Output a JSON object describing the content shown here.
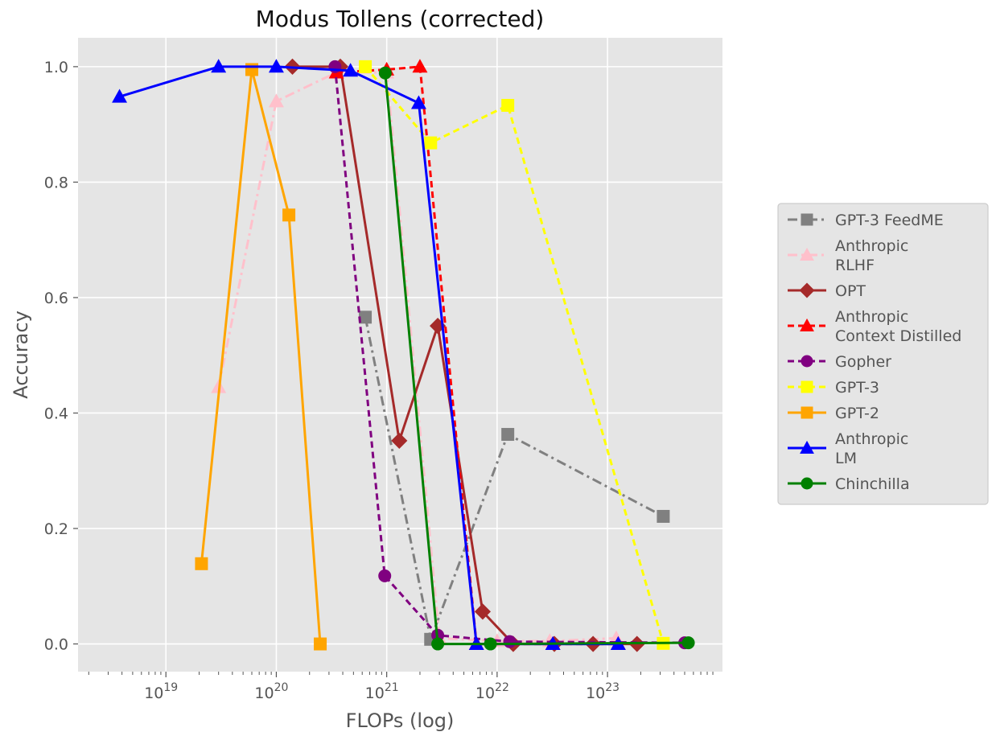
{
  "chart_data": {
    "type": "line",
    "title": "Modus Tollens (corrected)",
    "xlabel": "FLOPs (log)",
    "ylabel": "Accuracy",
    "xscale": "log",
    "xlim": [
      1.6e+18,
      1.1e+24
    ],
    "ylim": [
      -0.048,
      1.05
    ],
    "grid": true,
    "legend_position": "right",
    "x_ticks": [
      {
        "value": 1e+19,
        "base": "10",
        "exp": "19"
      },
      {
        "value": 1e+20,
        "base": "10",
        "exp": "20"
      },
      {
        "value": 1e+21,
        "base": "10",
        "exp": "21"
      },
      {
        "value": 1e+22,
        "base": "10",
        "exp": "22"
      },
      {
        "value": 1e+23,
        "base": "10",
        "exp": "23"
      }
    ],
    "y_ticks": [
      "0.0",
      "0.2",
      "0.4",
      "0.6",
      "0.8",
      "1.0"
    ],
    "series": [
      {
        "name": "GPT-3 FeedME",
        "color": "#808080",
        "dash": "dashdot",
        "marker": "square",
        "x": [
          6.4e+20,
          2.5e+21,
          1.25e+22,
          3.2e+23
        ],
        "y": [
          0.566,
          0.008,
          0.363,
          0.221
        ]
      },
      {
        "name": "Anthropic\nRLHF",
        "color": "#ffc0cb",
        "dash": "dashdot",
        "marker": "triangle",
        "x": [
          3e+19,
          1e+20,
          3.5e+20,
          1e+21,
          3e+21,
          1e+22,
          3e+22,
          1.2e+23
        ],
        "y": [
          0.445,
          0.94,
          0.99,
          0.99,
          0.01,
          0.005,
          0.005,
          0.01
        ]
      },
      {
        "name": "OPT",
        "color": "#a52a2a",
        "dash": "solid",
        "marker": "diamond",
        "x": [
          1.4e+20,
          3.8e+20,
          1.3e+21,
          2.9e+21,
          7.4e+21,
          1.4e+22,
          3.3e+22,
          7.4e+22,
          1.85e+23
        ],
        "y": [
          1.0,
          1.0,
          0.352,
          0.551,
          0.056,
          0.0,
          0.0,
          0.0,
          0.0
        ]
      },
      {
        "name": "Anthropic\nContext Distilled",
        "color": "#ff0000",
        "dash": "dashed",
        "marker": "triangle",
        "x": [
          3.5e+20,
          1e+21,
          2e+21,
          6.5e+21,
          3.2e+22,
          1.25e+23
        ],
        "y": [
          0.99,
          0.995,
          1.0,
          0.0,
          0.0,
          0.0
        ]
      },
      {
        "name": "Gopher",
        "color": "#800080",
        "dash": "dashed",
        "marker": "circle",
        "x": [
          3.4e+20,
          9.6e+20,
          2.9e+21,
          1.3e+22,
          5e+23
        ],
        "y": [
          1.0,
          0.118,
          0.015,
          0.004,
          0.002
        ]
      },
      {
        "name": "GPT-3",
        "color": "#ffff00",
        "dash": "dashed",
        "marker": "square",
        "x": [
          6.4e+20,
          2.5e+21,
          1.25e+22,
          3.2e+23
        ],
        "y": [
          1.0,
          0.868,
          0.933,
          0.001
        ]
      },
      {
        "name": "GPT-2",
        "color": "#ffa500",
        "dash": "solid",
        "marker": "square",
        "x": [
          2.1e+19,
          6e+19,
          1.3e+20,
          2.5e+20
        ],
        "y": [
          0.139,
          0.995,
          0.743,
          0.0
        ]
      },
      {
        "name": "Anthropic\nLM",
        "color": "#0000ff",
        "dash": "solid",
        "marker": "triangle",
        "x": [
          3.8e+18,
          3e+19,
          1e+20,
          4.7e+20,
          1.95e+21,
          6.5e+21,
          3.2e+22,
          1.25e+23
        ],
        "y": [
          0.948,
          1.0,
          1.0,
          0.993,
          0.937,
          0.0,
          0.0,
          0.0
        ]
      },
      {
        "name": "Chinchilla",
        "color": "#008000",
        "dash": "solid",
        "marker": "circle",
        "x": [
          9.7e+20,
          2.9e+21,
          8.7e+21,
          5.4e+23
        ],
        "y": [
          0.989,
          0.0,
          0.0,
          0.002
        ]
      }
    ]
  }
}
